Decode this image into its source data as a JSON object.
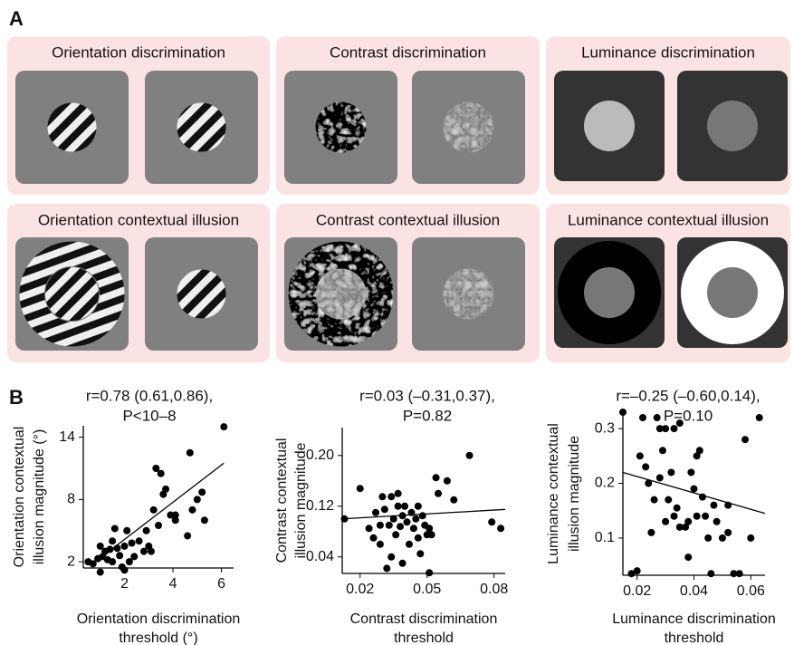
{
  "panel_a": {
    "label": "A",
    "panels": [
      {
        "title": "Orientation discrimination"
      },
      {
        "title": "Contrast discrimination"
      },
      {
        "title": "Luminance discrimination"
      },
      {
        "title": "Orientation contextual  illusion"
      },
      {
        "title": "Contrast contextual illusion"
      },
      {
        "title": "Luminance contextual illusion"
      }
    ]
  },
  "panel_b": {
    "label": "B"
  },
  "chart_data": [
    {
      "type": "scatter",
      "title": [
        "r=0.78 (0.61,0.86),",
        "P<10–8"
      ],
      "xlabel": [
        "Orientation discrimination",
        "threshold (°)"
      ],
      "ylabel": [
        "Orientation contextual",
        "illusion magnitude (°)"
      ],
      "xlim": [
        0.3,
        6.5
      ],
      "ylim": [
        1.4,
        15.1
      ],
      "xticks": [
        2,
        4,
        6
      ],
      "yticks": [
        2,
        8,
        14
      ],
      "color": "#000000",
      "x": [
        0.5,
        0.7,
        0.9,
        1.0,
        1.0,
        1.1,
        1.2,
        1.3,
        1.4,
        1.5,
        1.5,
        1.6,
        1.7,
        1.8,
        1.9,
        2.0,
        2.0,
        2.1,
        2.3,
        2.4,
        2.6,
        2.8,
        2.9,
        3.0,
        3.2,
        3.3,
        3.4,
        3.5,
        3.6,
        3.7,
        3.9,
        4.1,
        4.1,
        4.6,
        4.7,
        4.8,
        5.0,
        5.2,
        5.3,
        6.1,
        2.2,
        3.1
      ],
      "y": [
        2,
        1.8,
        2.3,
        1.0,
        3.5,
        2.5,
        3.0,
        2.2,
        3.2,
        4.0,
        2.0,
        5.2,
        3.3,
        2.6,
        1.5,
        1.2,
        3.5,
        5.0,
        3.8,
        2.5,
        4.0,
        3.0,
        5.0,
        3.5,
        7.0,
        11.0,
        5.5,
        10.5,
        8.5,
        9.0,
        6.5,
        6.0,
        6.5,
        4.5,
        12.5,
        7.0,
        8.0,
        8.7,
        6.0,
        15.0,
        2.0,
        3.0
      ],
      "trend": {
        "x": [
          0.8,
          6.1
        ],
        "y": [
          2.0,
          11.5
        ]
      }
    },
    {
      "type": "scatter",
      "title": [
        "r=0.03 (–0.31,0.37),",
        "P=0.82"
      ],
      "xlabel": [
        "Contrast discrimination",
        "threshold"
      ],
      "ylabel": [
        "Contrast contextual",
        "illusion magnitude"
      ],
      "xlim": [
        0.012,
        0.085
      ],
      "ylim": [
        0.014,
        0.244
      ],
      "xticks": [
        0.02,
        0.05,
        0.08
      ],
      "yticks": [
        {
          "value": 0.04,
          "label": "0.04"
        },
        {
          "value": 0.12,
          "label": "0.12"
        },
        {
          "value": 0.2,
          "label": "0.20"
        }
      ],
      "color": "#000000",
      "x": [
        0.013,
        0.02,
        0.024,
        0.026,
        0.027,
        0.029,
        0.03,
        0.031,
        0.032,
        0.033,
        0.034,
        0.034,
        0.035,
        0.036,
        0.037,
        0.038,
        0.039,
        0.039,
        0.04,
        0.041,
        0.042,
        0.043,
        0.044,
        0.045,
        0.046,
        0.046,
        0.047,
        0.048,
        0.049,
        0.05,
        0.051,
        0.051,
        0.052,
        0.054,
        0.055,
        0.059,
        0.062,
        0.069,
        0.079,
        0.083,
        0.029,
        0.037
      ],
      "y": [
        0.1,
        0.148,
        0.085,
        0.07,
        0.11,
        0.06,
        0.135,
        0.115,
        0.022,
        0.09,
        0.135,
        0.04,
        0.1,
        0.075,
        0.12,
        0.088,
        0.105,
        0.03,
        0.12,
        0.095,
        0.06,
        0.11,
        0.085,
        0.1,
        0.07,
        0.12,
        0.045,
        0.105,
        0.09,
        0.075,
        0.015,
        0.085,
        0.075,
        0.165,
        0.14,
        0.16,
        0.13,
        0.2,
        0.095,
        0.085,
        0.09,
        0.14
      ],
      "trend": {
        "x": [
          0.012,
          0.085
        ],
        "y": [
          0.1,
          0.115
        ]
      }
    },
    {
      "type": "scatter",
      "title": [
        "r=–0.25 (–0.60,0.14),",
        "P=0.10"
      ],
      "xlabel": [
        "Luminance discrimination",
        "threshold"
      ],
      "ylabel": [
        "Luminance contextual",
        "illusion magnitude"
      ],
      "xlim": [
        0.015,
        0.065
      ],
      "ylim": [
        0.032,
        0.33
      ],
      "xticks": [
        0.02,
        0.04,
        0.06
      ],
      "yticks": [
        0.1,
        0.2,
        0.3
      ],
      "color": "#000000",
      "x": [
        0.015,
        0.018,
        0.02,
        0.021,
        0.022,
        0.023,
        0.024,
        0.025,
        0.026,
        0.027,
        0.028,
        0.028,
        0.029,
        0.03,
        0.03,
        0.031,
        0.032,
        0.033,
        0.033,
        0.034,
        0.035,
        0.035,
        0.037,
        0.038,
        0.038,
        0.039,
        0.04,
        0.041,
        0.041,
        0.042,
        0.043,
        0.044,
        0.045,
        0.046,
        0.047,
        0.048,
        0.05,
        0.052,
        0.054,
        0.056,
        0.058,
        0.06,
        0.063,
        0.052
      ],
      "y": [
        0.33,
        0.035,
        0.04,
        0.25,
        0.32,
        0.23,
        0.2,
        0.11,
        0.17,
        0.32,
        0.3,
        0.21,
        0.26,
        0.3,
        0.13,
        0.17,
        0.22,
        0.3,
        0.14,
        0.155,
        0.31,
        0.12,
        0.12,
        0.065,
        0.13,
        0.22,
        0.19,
        0.25,
        0.14,
        0.26,
        0.175,
        0.14,
        0.1,
        0.035,
        0.16,
        0.13,
        0.1,
        0.16,
        0.035,
        0.035,
        0.28,
        0.1,
        0.32,
        0.11
      ],
      "trend": {
        "x": [
          0.015,
          0.065
        ],
        "y": [
          0.22,
          0.145
        ]
      }
    }
  ]
}
